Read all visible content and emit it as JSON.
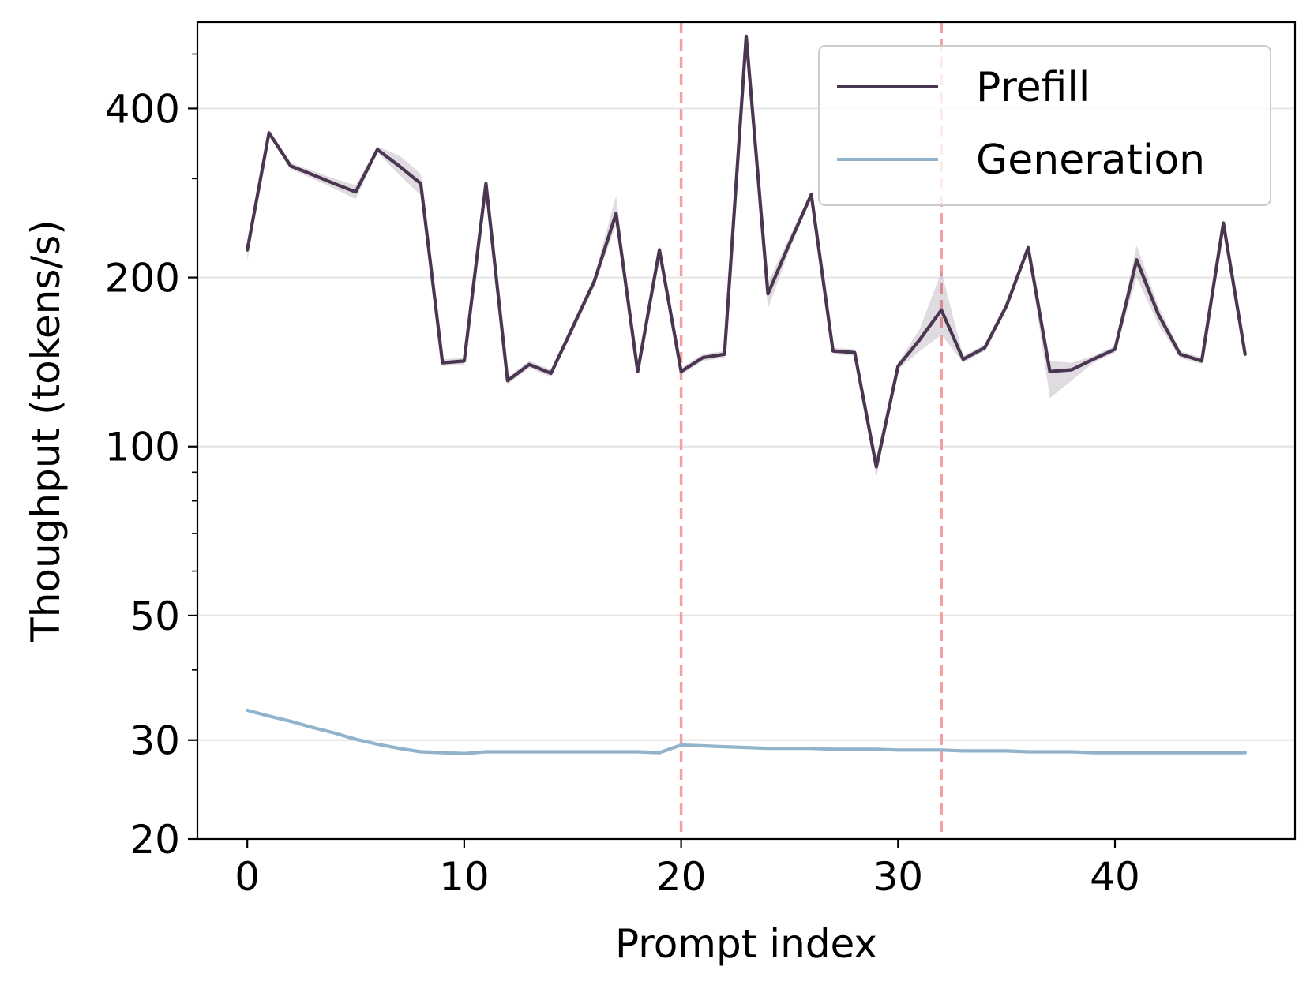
{
  "chart_data": {
    "type": "line",
    "xlabel": "Prompt index",
    "ylabel": "Thoughput (tokens/s)",
    "yscale": "log",
    "xlim": [
      -2.3,
      48.3
    ],
    "ylim": [
      20,
      570
    ],
    "x_ticks": [
      0,
      10,
      20,
      30,
      40
    ],
    "x_tick_labels": [
      "0",
      "10",
      "20",
      "30",
      "40"
    ],
    "y_ticks": [
      20,
      30,
      50,
      100,
      200,
      400
    ],
    "y_tick_labels": [
      "20",
      "30",
      "50",
      "100",
      "200",
      "400"
    ],
    "grid": "horizontal",
    "legend_position": "top-right",
    "vertical_markers": [
      20,
      32
    ],
    "vertical_marker_color": "#f4a0a0",
    "x": [
      0,
      1,
      2,
      3,
      4,
      5,
      6,
      7,
      8,
      9,
      10,
      11,
      12,
      13,
      14,
      15,
      16,
      17,
      18,
      19,
      20,
      21,
      22,
      23,
      24,
      25,
      26,
      27,
      28,
      29,
      30,
      31,
      32,
      33,
      34,
      35,
      36,
      37,
      38,
      39,
      40,
      41,
      42,
      43,
      44,
      45,
      46
    ],
    "series": [
      {
        "name": "Prefill",
        "color": "#4b3651",
        "values": [
          224,
          362,
          316,
          305,
          294,
          284,
          338,
          316,
          294,
          141,
          142,
          294,
          131,
          140,
          135,
          163,
          197,
          260,
          136,
          224,
          136,
          144,
          146,
          538,
          187,
          230,
          281,
          148,
          147,
          92,
          139,
          155,
          175,
          143,
          150,
          178,
          226,
          136,
          137,
          143,
          149,
          215,
          172,
          146,
          142,
          250,
          146
        ],
        "band_lower": [
          214,
          358,
          312,
          300,
          288,
          276,
          334,
          305,
          280,
          139,
          140,
          290,
          129,
          138,
          133,
          160,
          193,
          248,
          134,
          220,
          134,
          142,
          144,
          532,
          176,
          224,
          277,
          146,
          145,
          88,
          137,
          148,
          158,
          141,
          148,
          175,
          222,
          122,
          131,
          141,
          147,
          200,
          165,
          144,
          140,
          246,
          144
        ],
        "band_upper": [
          230,
          366,
          320,
          310,
          300,
          292,
          342,
          330,
          306,
          143,
          144,
          298,
          133,
          142,
          137,
          166,
          201,
          280,
          138,
          228,
          138,
          146,
          148,
          544,
          196,
          236,
          285,
          150,
          149,
          94,
          141,
          162,
          205,
          145,
          152,
          181,
          230,
          142,
          141,
          145,
          151,
          228,
          178,
          148,
          144,
          254,
          148
        ]
      },
      {
        "name": "Generation",
        "color": "#92b3cc",
        "values": [
          33.9,
          33.1,
          32.4,
          31.6,
          30.9,
          30.1,
          29.5,
          29.0,
          28.6,
          28.5,
          28.4,
          28.6,
          28.6,
          28.6,
          28.6,
          28.6,
          28.6,
          28.6,
          28.6,
          28.5,
          29.4,
          29.3,
          29.2,
          29.1,
          29.0,
          29.0,
          29.0,
          28.9,
          28.9,
          28.9,
          28.8,
          28.8,
          28.8,
          28.7,
          28.7,
          28.7,
          28.6,
          28.6,
          28.6,
          28.5,
          28.5,
          28.5,
          28.5,
          28.5,
          28.5,
          28.5,
          28.5
        ]
      }
    ]
  }
}
